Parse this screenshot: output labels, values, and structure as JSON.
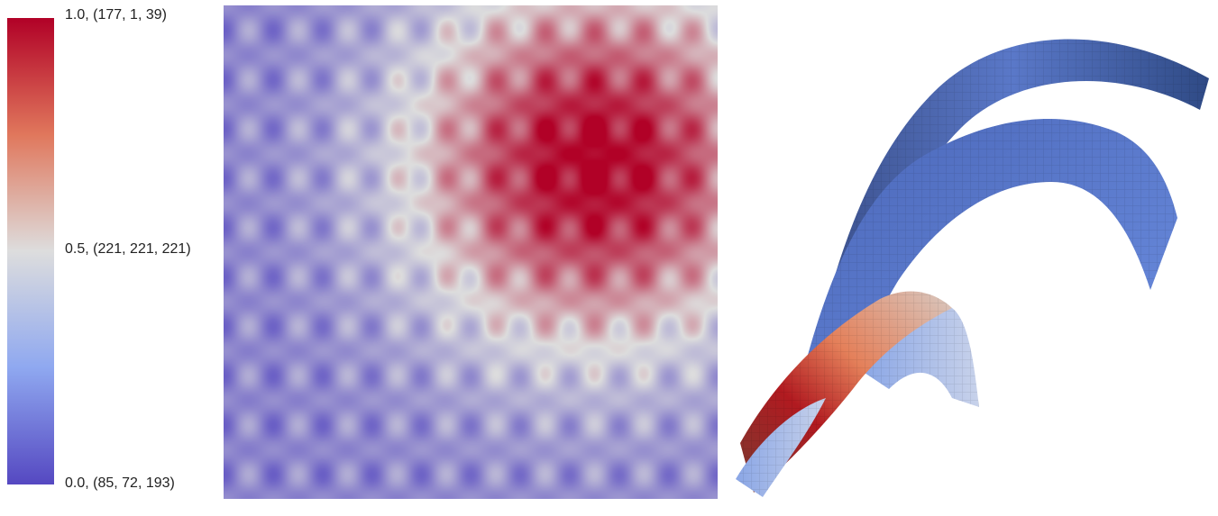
{
  "colorbar": {
    "stops": [
      {
        "value": 0.0,
        "rgb": [
          85,
          72,
          193
        ],
        "label": "0.0, (85, 72, 193)"
      },
      {
        "value": 0.5,
        "rgb": [
          221,
          221,
          221
        ],
        "label": "0.5, (221, 221, 221)"
      },
      {
        "value": 1.0,
        "rgb": [
          177,
          1,
          39
        ],
        "label": "1.0, (177, 1, 39)"
      }
    ],
    "colors": {
      "low": "#5548c1",
      "mid": "#dddddd",
      "high": "#b10127"
    }
  },
  "panels": [
    "colorbar",
    "heatmap",
    "3d-surface"
  ]
}
